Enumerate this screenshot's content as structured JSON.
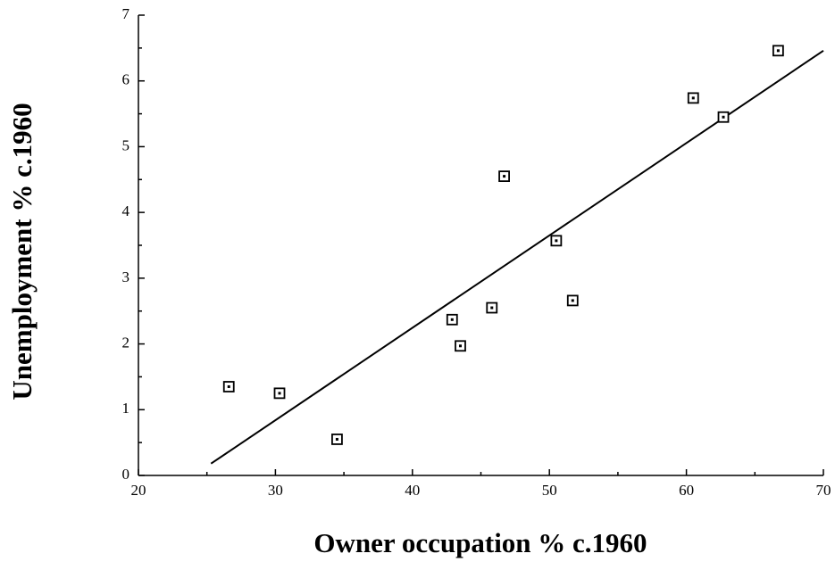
{
  "chart_data": {
    "type": "scatter",
    "x_label": "Owner occupation % c.1960",
    "y_label": "Unemployment % c.1960",
    "x": [
      26.6,
      30.3,
      34.5,
      42.9,
      43.5,
      45.8,
      46.7,
      50.5,
      51.7,
      60.5,
      62.7,
      66.7
    ],
    "values": [
      1.35,
      1.25,
      0.55,
      2.37,
      1.97,
      2.55,
      4.55,
      3.57,
      2.66,
      5.74,
      5.45,
      6.46
    ],
    "fit_line": {
      "x": [
        25.3,
        70
      ],
      "y": [
        0.18,
        6.46
      ]
    },
    "color": "#000000",
    "xlim": [
      20,
      70
    ],
    "ylim": [
      0,
      7
    ],
    "xticks": [
      20,
      30,
      40,
      50,
      60,
      70
    ],
    "yticks": [
      0,
      1,
      2,
      3,
      4,
      5,
      6,
      7
    ],
    "xminorticks": [
      25,
      35,
      45,
      55,
      65
    ],
    "yminorticks": [
      0.5,
      1.5,
      2.5,
      3.5,
      4.5,
      5.5,
      6.5
    ],
    "grid": false
  }
}
